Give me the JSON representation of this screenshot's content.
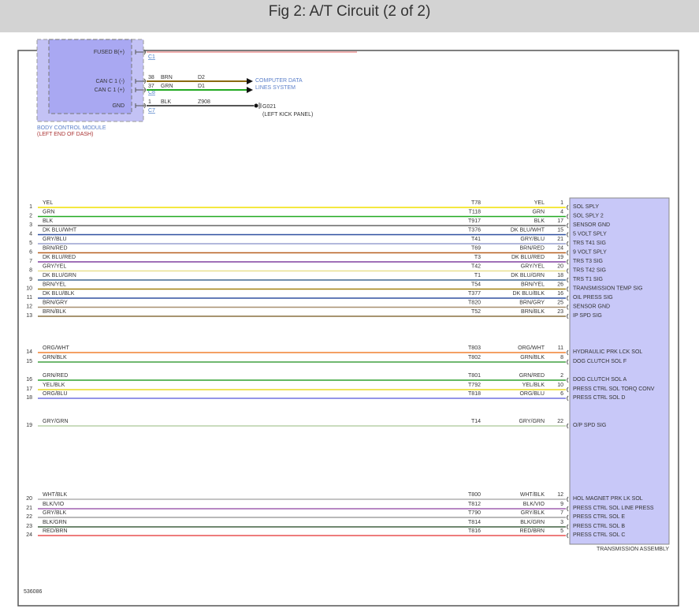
{
  "header": {
    "title": "Fig 2: A/T Circuit (2 of 2)"
  },
  "bcm": {
    "name": "BODY CONTROL MODULE",
    "location": "(LEFT END OF DASH)",
    "fill": "#a9a8f2",
    "pins": [
      {
        "label": "FUSED B(+)",
        "connector": "C1",
        "pin": "",
        "color": "",
        "circuit": "",
        "wire": "#e06060"
      },
      {
        "label": "CAN C 1 (-)",
        "connector": "",
        "pin": "38",
        "color": "BRN",
        "circuit": "D2",
        "wire": "#8a6a10"
      },
      {
        "label": "CAN C 1 (+)",
        "connector": "C8",
        "pin": "37",
        "color": "GRN",
        "circuit": "D1",
        "wire": "#22aa22"
      },
      {
        "label": "GND",
        "connector": "C7",
        "pin": "1",
        "color": "BLK",
        "circuit": "Z908",
        "wire": "#555555"
      }
    ],
    "can_dest": [
      "COMPUTER DATA",
      "LINES SYSTEM"
    ],
    "ground": {
      "name": "G021",
      "location": "(LEFT KICK PANEL)"
    }
  },
  "tcm": {
    "name": "TRANSMISSION ASSEMBLY",
    "fill": "#c8c8f8"
  },
  "wires": [
    {
      "n": "1",
      "color": "YEL",
      "circuit": "T78",
      "pin": "1",
      "label": "SOL SPLY",
      "hex": "#f0e000"
    },
    {
      "n": "2",
      "color": "GRN",
      "circuit": "T118",
      "pin": "4",
      "label": "SOL SPLY 2",
      "hex": "#22aa22"
    },
    {
      "n": "3",
      "color": "BLK",
      "circuit": "T917",
      "pin": "17",
      "label": "SENSOR GND",
      "hex": "#666666"
    },
    {
      "n": "4",
      "color": "DK BLU/WHT",
      "circuit": "T376",
      "pin": "15",
      "label": "5 VOLT SPLY",
      "hex": "#3050a0"
    },
    {
      "n": "5",
      "color": "GRY/BLU",
      "circuit": "T41",
      "pin": "21",
      "label": "TRS T41 SIG",
      "hex": "#9aa0d0"
    },
    {
      "n": "6",
      "color": "BRN/RED",
      "circuit": "T69",
      "pin": "24",
      "label": "9 VOLT SPLY",
      "hex": "#b86020"
    },
    {
      "n": "7",
      "color": "DK BLU/RED",
      "circuit": "T3",
      "pin": "19",
      "label": "TRS T3 SIG",
      "hex": "#8040a0"
    },
    {
      "n": "8",
      "color": "GRY/YEL",
      "circuit": "T42",
      "pin": "20",
      "label": "TRS T42 SIG",
      "hex": "#e8e090"
    },
    {
      "n": "9",
      "color": "DK BLU/GRN",
      "circuit": "T1",
      "pin": "18",
      "label": "TRS T1 SIG",
      "hex": "#406890"
    },
    {
      "n": "10",
      "color": "BRN/YEL",
      "circuit": "T54",
      "pin": "26",
      "label": "TRANSMISSION TEMP SIG",
      "hex": "#a08010"
    },
    {
      "n": "11",
      "color": "DK BLU/BLK",
      "circuit": "T377",
      "pin": "16",
      "label": "OIL PRESS SIG",
      "hex": "#3050a0"
    },
    {
      "n": "12",
      "color": "BRN/GRY",
      "circuit": "T820",
      "pin": "25",
      "label": "SENSOR GND",
      "hex": "#a89070"
    },
    {
      "n": "13",
      "color": "BRN/BLK",
      "circuit": "T52",
      "pin": "23",
      "label": "IP SPD SIG",
      "hex": "#8a7040"
    },
    {
      "n": "14",
      "color": "ORG/WHT",
      "circuit": "T803",
      "pin": "11",
      "label": "HYDRAULIC PRK LCK SOL",
      "hex": "#f08030"
    },
    {
      "n": "15",
      "color": "GRN/BLK",
      "circuit": "T802",
      "pin": "8",
      "label": "DOG CLUTCH SOL F",
      "hex": "#40a040"
    },
    {
      "n": "16",
      "color": "GRN/RED",
      "circuit": "T801",
      "pin": "2",
      "label": "DOG CLUTCH SOL A",
      "hex": "#30a030"
    },
    {
      "n": "17",
      "color": "YEL/BLK",
      "circuit": "T792",
      "pin": "10",
      "label": "PRESS CTRL SOL TORQ CONV",
      "hex": "#e8d820"
    },
    {
      "n": "18",
      "color": "ORG/BLU",
      "circuit": "T818",
      "pin": "6",
      "label": "PRESS CTRL SOL D",
      "hex": "#7070e0"
    },
    {
      "n": "19",
      "color": "GRY/GRN",
      "circuit": "T14",
      "pin": "22",
      "label": "O/P SPD SIG",
      "hex": "#b8d0a8"
    },
    {
      "n": "20",
      "color": "WHT/BLK",
      "circuit": "T800",
      "pin": "12",
      "label": "HOL MAGNET PRK LK SOL",
      "hex": "#b0b0b0"
    },
    {
      "n": "21",
      "color": "BLK/VIO",
      "circuit": "T812",
      "pin": "9",
      "label": "PRESS CTRL SOL LINE PRESS",
      "hex": "#a060b0"
    },
    {
      "n": "22",
      "color": "GRY/BLK",
      "circuit": "T790",
      "pin": "7",
      "label": "PRESS CTRL SOL E",
      "hex": "#a0a0a0"
    },
    {
      "n": "23",
      "color": "BLK/GRN",
      "circuit": "T814",
      "pin": "3",
      "label": "PRESS CTRL SOL B",
      "hex": "#406040"
    },
    {
      "n": "24",
      "color": "RED/BRN",
      "circuit": "T816",
      "pin": "5",
      "label": "PRESS CTRL SOL C",
      "hex": "#e85050"
    }
  ],
  "footer": {
    "figure_id": "536086"
  }
}
